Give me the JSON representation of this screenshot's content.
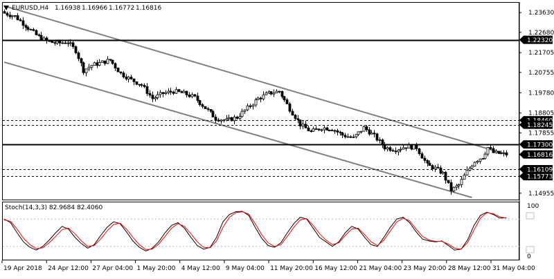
{
  "header": {
    "symbol_label": "EURUSD,H4",
    "ohlc": [
      "1.16938",
      "1.16966",
      "1.16772",
      "1.16816"
    ],
    "menu_icon": "triangle-down-icon"
  },
  "indicator": {
    "label": "Stoch(14,3,3) 82.9684 82.4060",
    "axis_top": "100",
    "axis_bottom": "0",
    "main_color": "#000000",
    "signal_color": "#ff0000"
  },
  "colors": {
    "candle": "#000000",
    "channel": "#808080",
    "level_tag_bg": "#000000",
    "level_tag_text": "#ffffff"
  },
  "chart_data": [
    {
      "type": "candlestick",
      "title": "EURUSD,H4",
      "grid": false,
      "ylim": [
        1.1465,
        1.241
      ],
      "y_ticks": [
        "1.23630",
        "1.22680",
        "1.21705",
        "1.20755",
        "1.19780",
        "1.18805",
        "1.17855",
        "1.14955"
      ],
      "x_ticks": [
        "19 Apr 2018",
        "24 Apr 12:00",
        "27 Apr 04:00",
        "1 May 20:00",
        "4 May 12:00",
        "9 May 04:00",
        "11 May 20:00",
        "16 May 12:00",
        "21 May 04:00",
        "23 May 20:00",
        "28 May 12:00",
        "31 May 04:00"
      ],
      "current_price": "1.16816",
      "horizontal_levels": [
        {
          "value": 1.2232,
          "label": "1.22320",
          "style": "solid"
        },
        {
          "value": 1.1846,
          "label": "1.18460",
          "style": "dashed"
        },
        {
          "value": 1.18245,
          "label": "1.18245",
          "style": "dashed"
        },
        {
          "value": 1.173,
          "label": "1.17300",
          "style": "solid"
        },
        {
          "value": 1.16109,
          "label": "1.16109",
          "style": "dashed"
        },
        {
          "value": 1.15773,
          "label": "1.15773",
          "style": "dashed"
        }
      ],
      "channel_lines": [
        {
          "name": "upper",
          "points": [
            [
              0,
              1.2395
            ],
            [
              190,
              1.1683
            ]
          ]
        },
        {
          "name": "lower",
          "points": [
            [
              0,
              1.2125
            ],
            [
              177,
              1.1475
            ]
          ]
        }
      ],
      "close_path": [
        [
          0,
          1.236
        ],
        [
          4,
          1.2345
        ],
        [
          8,
          1.23
        ],
        [
          12,
          1.2255
        ],
        [
          16,
          1.2225
        ],
        [
          20,
          1.2215
        ],
        [
          24,
          1.2222
        ],
        [
          27,
          1.218
        ],
        [
          30,
          1.2085
        ],
        [
          33,
          1.211
        ],
        [
          36,
          1.212
        ],
        [
          40,
          1.2135
        ],
        [
          44,
          1.207
        ],
        [
          48,
          1.204
        ],
        [
          52,
          1.2015
        ],
        [
          56,
          1.195
        ],
        [
          60,
          1.1975
        ],
        [
          64,
          1.1985
        ],
        [
          68,
          1.1975
        ],
        [
          72,
          1.1955
        ],
        [
          76,
          1.1905
        ],
        [
          80,
          1.1855
        ],
        [
          84,
          1.1845
        ],
        [
          88,
          1.186
        ],
        [
          92,
          1.1905
        ],
        [
          96,
          1.195
        ],
        [
          100,
          1.1975
        ],
        [
          104,
          1.1985
        ],
        [
          108,
          1.19
        ],
        [
          112,
          1.1825
        ],
        [
          116,
          1.179
        ],
        [
          120,
          1.181
        ],
        [
          124,
          1.1805
        ],
        [
          128,
          1.1775
        ],
        [
          132,
          1.176
        ],
        [
          136,
          1.181
        ],
        [
          140,
          1.177
        ],
        [
          144,
          1.1715
        ],
        [
          148,
          1.1705
        ],
        [
          152,
          1.172
        ],
        [
          156,
          1.1715
        ],
        [
          160,
          1.163
        ],
        [
          163,
          1.1615
        ],
        [
          166,
          1.159
        ],
        [
          169,
          1.151
        ],
        [
          172,
          1.1535
        ],
        [
          175,
          1.16
        ],
        [
          178,
          1.165
        ],
        [
          181,
          1.167
        ],
        [
          183,
          1.1715
        ],
        [
          185,
          1.169
        ],
        [
          188,
          1.1685
        ],
        [
          190,
          1.1682
        ]
      ]
    },
    {
      "type": "line",
      "title": "Stoch(14,3,3)",
      "ylim": [
        0,
        100
      ],
      "series": [
        {
          "values": [
            80,
            72,
            50,
            30,
            18,
            12,
            20,
            34,
            50,
            64,
            58,
            40,
            26,
            16,
            24,
            44,
            62,
            74,
            70,
            52,
            32,
            18,
            10,
            16,
            30,
            50,
            66,
            72,
            60,
            40,
            22,
            14,
            18,
            40,
            74,
            90,
            96,
            97,
            88,
            62,
            38,
            22,
            18,
            28,
            50,
            70,
            84,
            80,
            60,
            40,
            30,
            20,
            30,
            50,
            64,
            58,
            40,
            24,
            20,
            40,
            62,
            80,
            84,
            72,
            52,
            36,
            32,
            30,
            32,
            22,
            12,
            14,
            34,
            66,
            88,
            95,
            90,
            82,
            83
          ]
        },
        {
          "values": [
            78,
            75,
            58,
            38,
            24,
            15,
            17,
            28,
            42,
            57,
            60,
            48,
            32,
            20,
            22,
            36,
            54,
            68,
            71,
            58,
            40,
            24,
            13,
            14,
            25,
            42,
            60,
            70,
            64,
            48,
            30,
            18,
            17,
            32,
            62,
            84,
            94,
            96,
            91,
            70,
            46,
            28,
            20,
            24,
            42,
            62,
            78,
            81,
            66,
            48,
            34,
            24,
            28,
            44,
            58,
            60,
            46,
            30,
            22,
            34,
            54,
            74,
            82,
            76,
            58,
            42,
            34,
            31,
            31,
            25,
            16,
            14,
            28,
            56,
            82,
            94,
            92,
            85,
            82
          ]
        }
      ]
    }
  ]
}
